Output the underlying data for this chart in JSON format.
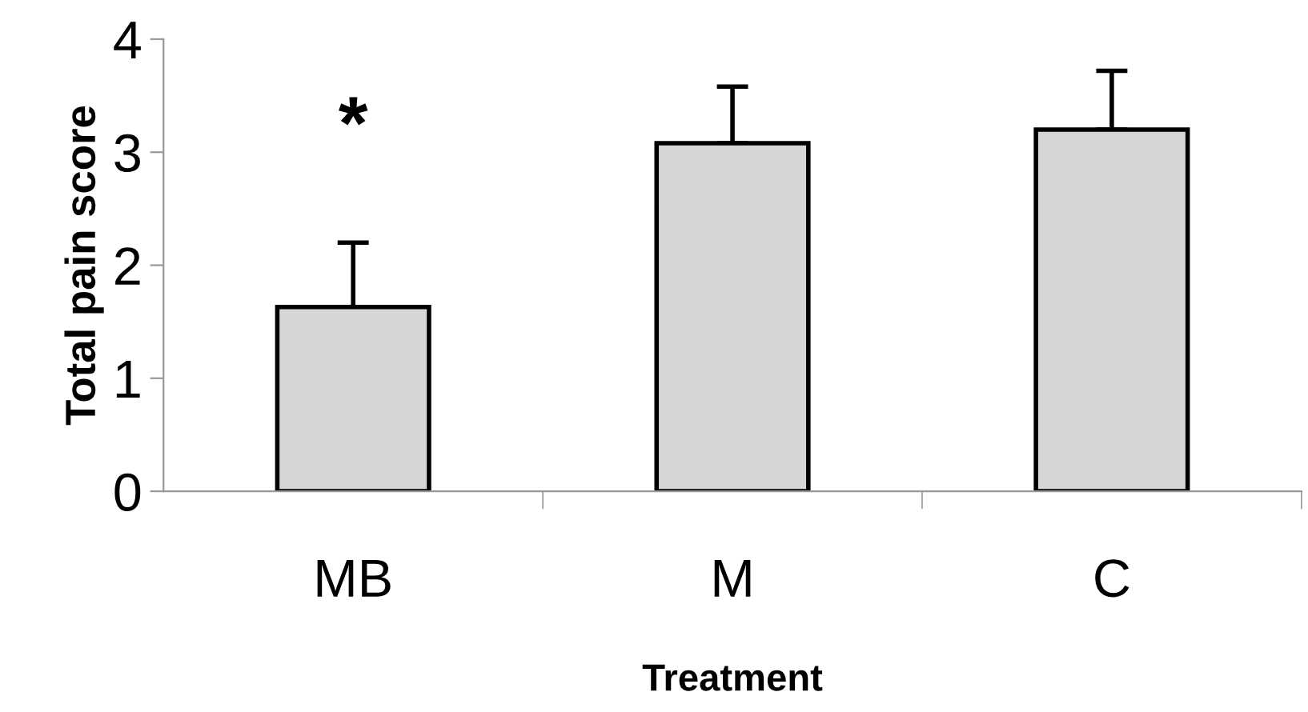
{
  "chart_data": {
    "type": "bar",
    "xlabel": "Treatment",
    "ylabel": "Total pain score",
    "categories": [
      "MB",
      "M",
      "C"
    ],
    "values": [
      1.63,
      3.08,
      3.2
    ],
    "errors": [
      [
        1.63,
        2.2
      ],
      [
        3.08,
        3.58
      ],
      [
        3.2,
        3.72
      ]
    ],
    "color": "#d6d6d6",
    "ylim": [
      0,
      4
    ],
    "yticks": [
      0,
      1,
      2,
      3,
      4
    ],
    "grid": false,
    "annotations": [
      "*"
    ]
  }
}
